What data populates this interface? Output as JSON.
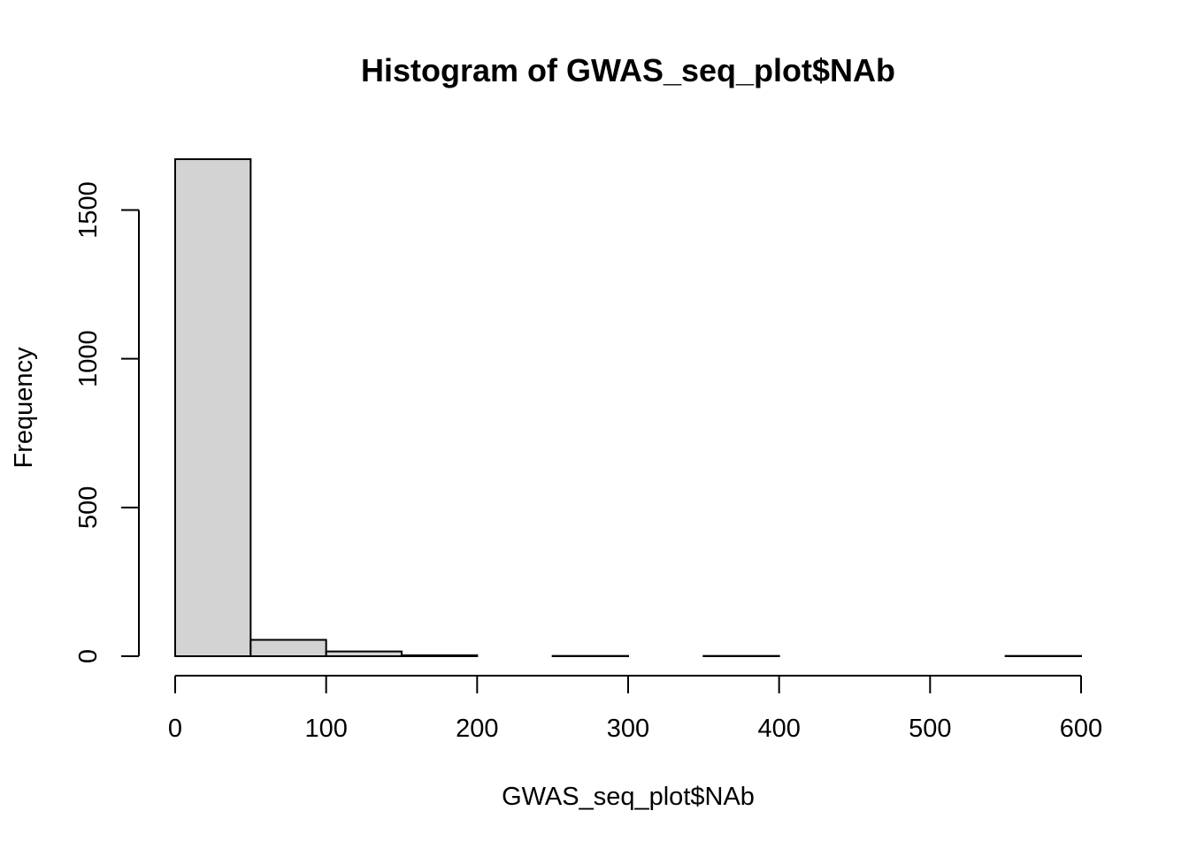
{
  "chart_data": {
    "type": "bar",
    "title": "Histogram of GWAS_seq_plot$NAb",
    "xlabel": "GWAS_seq_plot$NAb",
    "ylabel": "Frequency",
    "bins": [
      {
        "start": 0,
        "end": 50,
        "count": 1671
      },
      {
        "start": 50,
        "end": 100,
        "count": 55
      },
      {
        "start": 100,
        "end": 150,
        "count": 16
      },
      {
        "start": 150,
        "end": 200,
        "count": 3
      },
      {
        "start": 200,
        "end": 250,
        "count": 0
      },
      {
        "start": 250,
        "end": 300,
        "count": 1
      },
      {
        "start": 300,
        "end": 350,
        "count": 0
      },
      {
        "start": 350,
        "end": 400,
        "count": 1
      },
      {
        "start": 400,
        "end": 450,
        "count": 0
      },
      {
        "start": 450,
        "end": 500,
        "count": 0
      },
      {
        "start": 500,
        "end": 550,
        "count": 0
      },
      {
        "start": 550,
        "end": 600,
        "count": 1
      }
    ],
    "xlim": [
      0,
      600
    ],
    "ylim": [
      0,
      1671
    ],
    "xticks": [
      0,
      100,
      200,
      300,
      400,
      500,
      600
    ],
    "yticks": [
      0,
      500,
      1000,
      1500
    ],
    "bar_color": "#d3d3d3",
    "grid": false
  }
}
